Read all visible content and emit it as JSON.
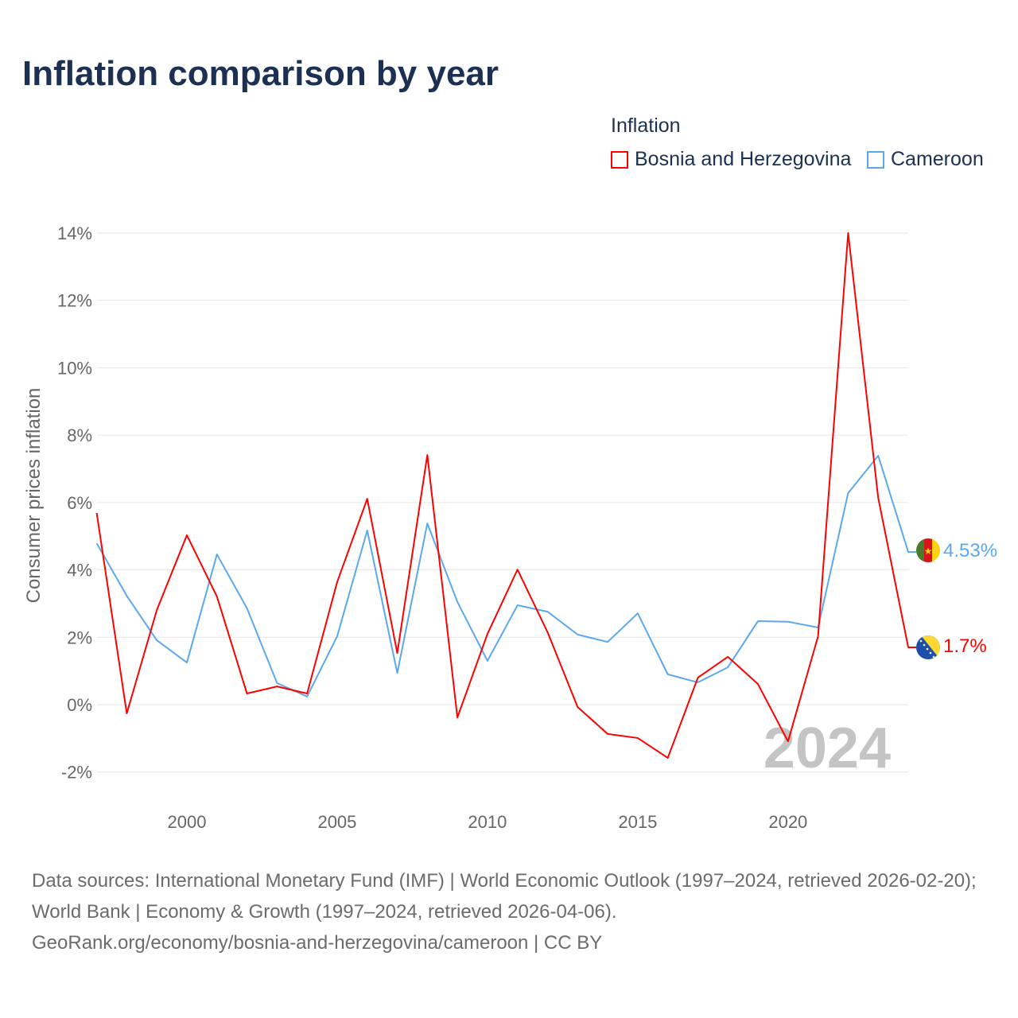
{
  "title": "Inflation comparison by year",
  "legend": {
    "title": "Inflation",
    "items": [
      {
        "label": "Bosnia and Herzegovina",
        "color": "#ff0000"
      },
      {
        "label": "Cameroon",
        "color": "#5ba8ee"
      }
    ]
  },
  "footer": {
    "sources": "Data sources: International Monetary Fund (IMF) | World Economic Outlook (1997–2024, retrieved 2026-02-20); World Bank | Economy & Growth (1997–2024, retrieved 2026-04-06).",
    "link": "GeoRank.org/economy/bosnia-and-herzegovina/cameroon | CC BY"
  },
  "chart_data": {
    "type": "line",
    "ylabel": "Consumer prices inflation",
    "xlabel": "",
    "year_watermark": "2024",
    "xlim": [
      1997,
      2024
    ],
    "ylim": [
      -2,
      14
    ],
    "xticks": [
      2000,
      2005,
      2010,
      2015,
      2020
    ],
    "xtick_labels": [
      "2000",
      "2005",
      "2010",
      "2015",
      "2020"
    ],
    "yticks": [
      -2,
      0,
      2,
      4,
      6,
      8,
      10,
      12,
      14
    ],
    "ytick_labels": [
      "-2%",
      "0%",
      "2%",
      "4%",
      "6%",
      "8%",
      "10%",
      "12%",
      "14%"
    ],
    "x": [
      1997,
      1998,
      1999,
      2000,
      2001,
      2002,
      2003,
      2004,
      2005,
      2006,
      2007,
      2008,
      2009,
      2010,
      2011,
      2012,
      2013,
      2014,
      2015,
      2016,
      2017,
      2018,
      2019,
      2020,
      2021,
      2022,
      2023,
      2024
    ],
    "series": [
      {
        "name": "Bosnia and Herzegovina",
        "color": "#ff0000",
        "end_label": "1.7%",
        "values": [
          5.69,
          -0.26,
          2.81,
          5.03,
          3.21,
          0.33,
          0.54,
          0.33,
          3.64,
          6.11,
          1.53,
          7.41,
          -0.38,
          2.1,
          4.01,
          2.15,
          -0.07,
          -0.87,
          -0.99,
          -1.58,
          0.8,
          1.42,
          0.61,
          -1.09,
          2.03,
          14.0,
          6.14,
          1.7
        ]
      },
      {
        "name": "Cameroon",
        "color": "#5ba8ee",
        "end_label": "4.53%",
        "values": [
          4.79,
          3.23,
          1.91,
          1.25,
          4.46,
          2.86,
          0.64,
          0.24,
          2.03,
          5.17,
          0.94,
          5.38,
          3.05,
          1.3,
          2.95,
          2.76,
          2.08,
          1.86,
          2.71,
          0.9,
          0.66,
          1.11,
          2.48,
          2.46,
          2.29,
          6.28,
          7.39,
          4.53
        ]
      }
    ]
  }
}
